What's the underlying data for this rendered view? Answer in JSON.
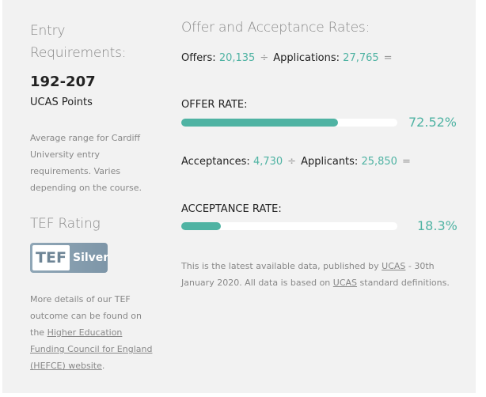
{
  "entry": {
    "title_line1": "Entry",
    "title_line2": "Requirements:",
    "points": "192-207",
    "points_label": "UCAS Points",
    "desc": "Average range for Cardiff University entry requirements. Varies depending on the course."
  },
  "tef": {
    "title": "TEF Rating",
    "badge_left": "TEF",
    "badge_right": "Silver",
    "desc_prefix": "More details of our TEF outcome can be found on the ",
    "link": "Higher Education Funding Council for England (HEFCE) website",
    "desc_suffix": "."
  },
  "rates": {
    "title": "Offer and Acceptance Rates:",
    "offers_label": "Offers:",
    "offers": "20,135",
    "divide": "÷",
    "applications_label": "Applications:",
    "applications": "27,765",
    "equals": "=",
    "offer_rate_label": "OFFER RATE:",
    "offer_rate": "72.52%",
    "offer_rate_value": 72.52,
    "acceptances_label": "Acceptances:",
    "acceptances": "4,730",
    "applicants_label": "Applicants:",
    "applicants": "25,850",
    "acceptance_rate_label": "ACCEPTANCE RATE:",
    "acceptance_rate": "18.3%",
    "acceptance_rate_value": 18.3,
    "note_1": "This is the latest available data, published by ",
    "note_ucas1": "UCAS",
    "note_2": " - 30th January 2020. All data is based on ",
    "note_ucas2": "UCAS",
    "note_3": " standard definitions.",
    "accent": "#4fb3a3"
  }
}
